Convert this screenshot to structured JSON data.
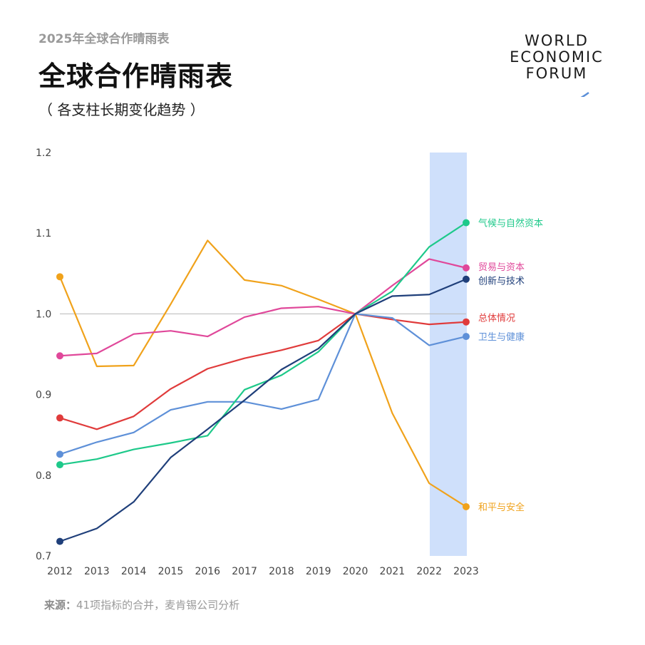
{
  "header": {
    "kicker": "2025年全球合作晴雨表",
    "title": "全球合作晴雨表",
    "subtitle": "（ 各支柱长期变化趋势 ）"
  },
  "logo": {
    "line1": "WORLD",
    "line2": "ECONOMIC",
    "line3": "FORUM"
  },
  "footer": {
    "source_label": "来源：",
    "source_text": "41项指标的合并，麦肯锡公司分析"
  },
  "chart_data": {
    "type": "line",
    "x": [
      2012,
      2013,
      2014,
      2015,
      2016,
      2017,
      2018,
      2019,
      2020,
      2021,
      2022,
      2023
    ],
    "ylim": [
      0.7,
      1.2
    ],
    "yticks": [
      "0.7",
      "0.8",
      "0.9",
      "1.0",
      "1.1",
      "1.2"
    ],
    "xticks": [
      "2012",
      "2013",
      "2014",
      "2015",
      "2016",
      "2017",
      "2018",
      "2019",
      "2020",
      "2021",
      "2022",
      "2023"
    ],
    "reference_line": 1.0,
    "highlight_range": [
      2022,
      2023
    ],
    "highlight_color": "#cfe0fb",
    "series": [
      {
        "name": "和平与安全",
        "color": "#f0a21b",
        "values": [
          1.046,
          0.935,
          0.936,
          1.012,
          1.091,
          1.042,
          1.035,
          1.018,
          1.0,
          0.877,
          0.79,
          0.761
        ]
      },
      {
        "name": "贸易与资本",
        "color": "#e0489a",
        "values": [
          0.948,
          0.951,
          0.975,
          0.979,
          0.972,
          0.996,
          1.007,
          1.009,
          1.0,
          1.035,
          1.068,
          1.057
        ]
      },
      {
        "name": "总体情况",
        "color": "#e03b3b",
        "values": [
          0.871,
          0.857,
          0.873,
          0.907,
          0.932,
          0.945,
          0.955,
          0.967,
          1.0,
          0.993,
          0.987,
          0.99
        ]
      },
      {
        "name": "卫生与健康",
        "color": "#5e90d8",
        "values": [
          0.826,
          0.841,
          0.853,
          0.881,
          0.891,
          0.891,
          0.882,
          0.894,
          1.0,
          0.995,
          0.961,
          0.972
        ]
      },
      {
        "name": "气候与自然资本",
        "color": "#1ec98a",
        "values": [
          0.813,
          0.82,
          0.832,
          0.84,
          0.849,
          0.906,
          0.924,
          0.953,
          1.0,
          1.028,
          1.083,
          1.113
        ]
      },
      {
        "name": "创新与技术",
        "color": "#1f3f7a",
        "values": [
          0.718,
          0.734,
          0.767,
          0.822,
          0.857,
          0.893,
          0.931,
          0.957,
          1.0,
          1.022,
          1.024,
          1.043
        ]
      }
    ]
  }
}
